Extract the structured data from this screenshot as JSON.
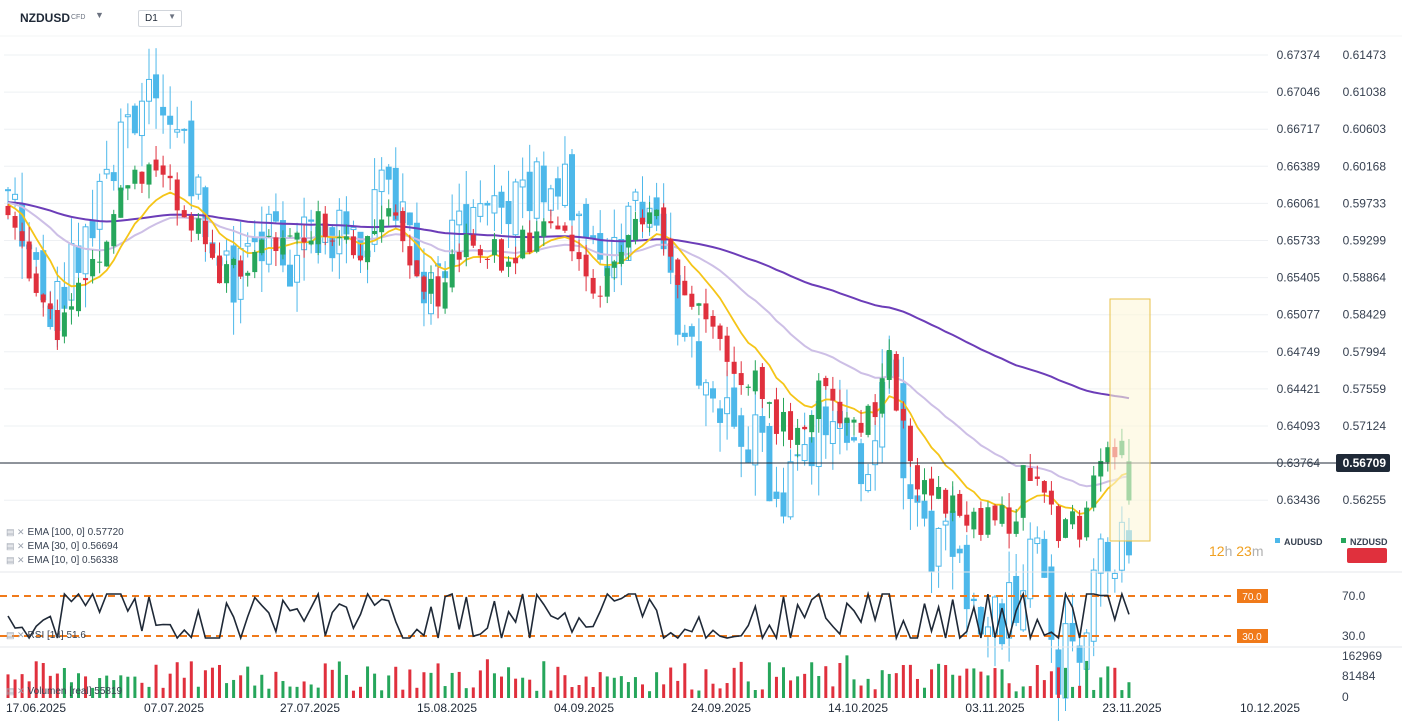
{
  "header": {
    "symbol": "NZDUSD",
    "symbol_type": "CFD",
    "timeframe": "D1"
  },
  "indicators": [
    {
      "label": "EMA [100, 0]",
      "value": "0.57720"
    },
    {
      "label": "EMA [30, 0]",
      "value": "0.56694"
    },
    {
      "label": "EMA [10, 0]",
      "value": "0.56338"
    }
  ],
  "rsi_label": "RSI [14]",
  "rsi_value": "51.6",
  "volume_label": "Volumen [real]",
  "volume_value": "55819",
  "countdown": {
    "hours": "12",
    "h": "h",
    "minutes": "23",
    "m": "m"
  },
  "legend": [
    {
      "name": "AUDUSD",
      "color": "#4db8ea"
    },
    {
      "name": "NZDUSD",
      "color": "#26a65b"
    }
  ],
  "colors": {
    "up": "#26a65b",
    "down": "#e0303d",
    "compare": "#4db8ea",
    "ema10": "#f5c518",
    "ema30": "#cdbfe6",
    "ema100": "#6c3db8",
    "rsi": "#1f2937",
    "rsi_level": "#f07a1a",
    "current_price": "#1f2937"
  },
  "chart_data": {
    "type": "candlestick",
    "x_ticks": [
      "17.06.2025",
      "07.07.2025",
      "27.07.2025",
      "15.08.2025",
      "04.09.2025",
      "24.09.2025",
      "14.10.2025",
      "03.11.2025",
      "23.11.2025",
      "10.12.2025"
    ],
    "y_left_ticks": [
      "0.67374",
      "0.67046",
      "0.66717",
      "0.66389",
      "0.66061",
      "0.65733",
      "0.65405",
      "0.65077",
      "0.64749",
      "0.64421",
      "0.64093",
      "0.63764",
      "0.63436"
    ],
    "y_right_ticks": [
      "0.61473",
      "0.61038",
      "0.60603",
      "0.60168",
      "0.59733",
      "0.59299",
      "0.58864",
      "0.58429",
      "0.57994",
      "0.57559",
      "0.57124",
      "0.56709",
      "0.56255"
    ],
    "current_price": "0.56709",
    "current_price_audusd_scale": 0.63764,
    "rsi": {
      "levels": [
        "70.0",
        "30.0"
      ],
      "ticks": [
        "70.0",
        "30.0"
      ]
    },
    "volume": {
      "ticks": [
        "162969",
        "81484",
        "0"
      ]
    },
    "nzdusd_close_samples": [
      0.596,
      0.5895,
      0.583,
      0.588,
      0.5935,
      0.5995,
      0.602,
      0.599,
      0.594,
      0.589,
      0.59,
      0.594,
      0.593,
      0.596,
      0.594,
      0.592,
      0.5985,
      0.5905,
      0.585,
      0.592,
      0.593,
      0.5895,
      0.594,
      0.595,
      0.5905,
      0.5875,
      0.5925,
      0.598,
      0.588,
      0.584,
      0.579,
      0.578,
      0.572,
      0.571,
      0.5745,
      0.573,
      0.571,
      0.5785,
      0.564,
      0.563,
      0.562,
      0.5595,
      0.56,
      0.568,
      0.558,
      0.56,
      0.569,
      0.5671
    ],
    "series": [
      {
        "name": "NZDUSD",
        "type": "candlestick"
      },
      {
        "name": "AUDUSD",
        "type": "candlestick"
      },
      {
        "name": "EMA [100, 0]",
        "last": 0.5772
      },
      {
        "name": "EMA [30, 0]",
        "last": 0.56694
      },
      {
        "name": "EMA [10, 0]",
        "last": 0.56338
      },
      {
        "name": "RSI [14]",
        "last": 51.6
      },
      {
        "name": "Volumen [real]",
        "last": 55819
      }
    ]
  }
}
